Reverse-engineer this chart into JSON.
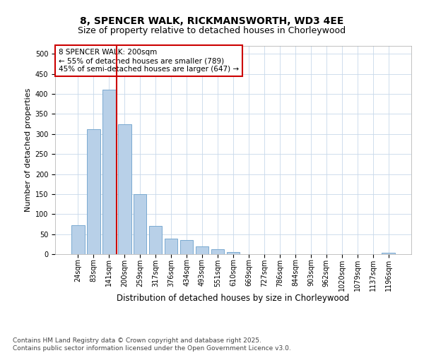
{
  "title1": "8, SPENCER WALK, RICKMANSWORTH, WD3 4EE",
  "title2": "Size of property relative to detached houses in Chorleywood",
  "xlabel": "Distribution of detached houses by size in Chorleywood",
  "ylabel": "Number of detached properties",
  "categories": [
    "24sqm",
    "83sqm",
    "141sqm",
    "200sqm",
    "259sqm",
    "317sqm",
    "376sqm",
    "434sqm",
    "493sqm",
    "551sqm",
    "610sqm",
    "669sqm",
    "727sqm",
    "786sqm",
    "844sqm",
    "903sqm",
    "962sqm",
    "1020sqm",
    "1079sqm",
    "1137sqm",
    "1196sqm"
  ],
  "values": [
    72,
    312,
    410,
    325,
    150,
    70,
    38,
    35,
    20,
    12,
    5,
    0,
    0,
    0,
    0,
    0,
    0,
    0,
    0,
    0,
    3
  ],
  "bar_color": "#b8d0e8",
  "bar_edgecolor": "#7aaad0",
  "vline_color": "#cc0000",
  "annotation_text": "8 SPENCER WALK: 200sqm\n← 55% of detached houses are smaller (789)\n45% of semi-detached houses are larger (647) →",
  "annotation_box_color": "#ffffff",
  "annotation_border_color": "#cc0000",
  "ylim": [
    0,
    520
  ],
  "yticks": [
    0,
    50,
    100,
    150,
    200,
    250,
    300,
    350,
    400,
    450,
    500
  ],
  "background_color": "#ffffff",
  "grid_color": "#c8d8ea",
  "footer_text": "Contains HM Land Registry data © Crown copyright and database right 2025.\nContains public sector information licensed under the Open Government Licence v3.0.",
  "title1_fontsize": 10,
  "title2_fontsize": 9,
  "xlabel_fontsize": 8.5,
  "ylabel_fontsize": 8,
  "tick_fontsize": 7,
  "annotation_fontsize": 7.5,
  "footer_fontsize": 6.5
}
